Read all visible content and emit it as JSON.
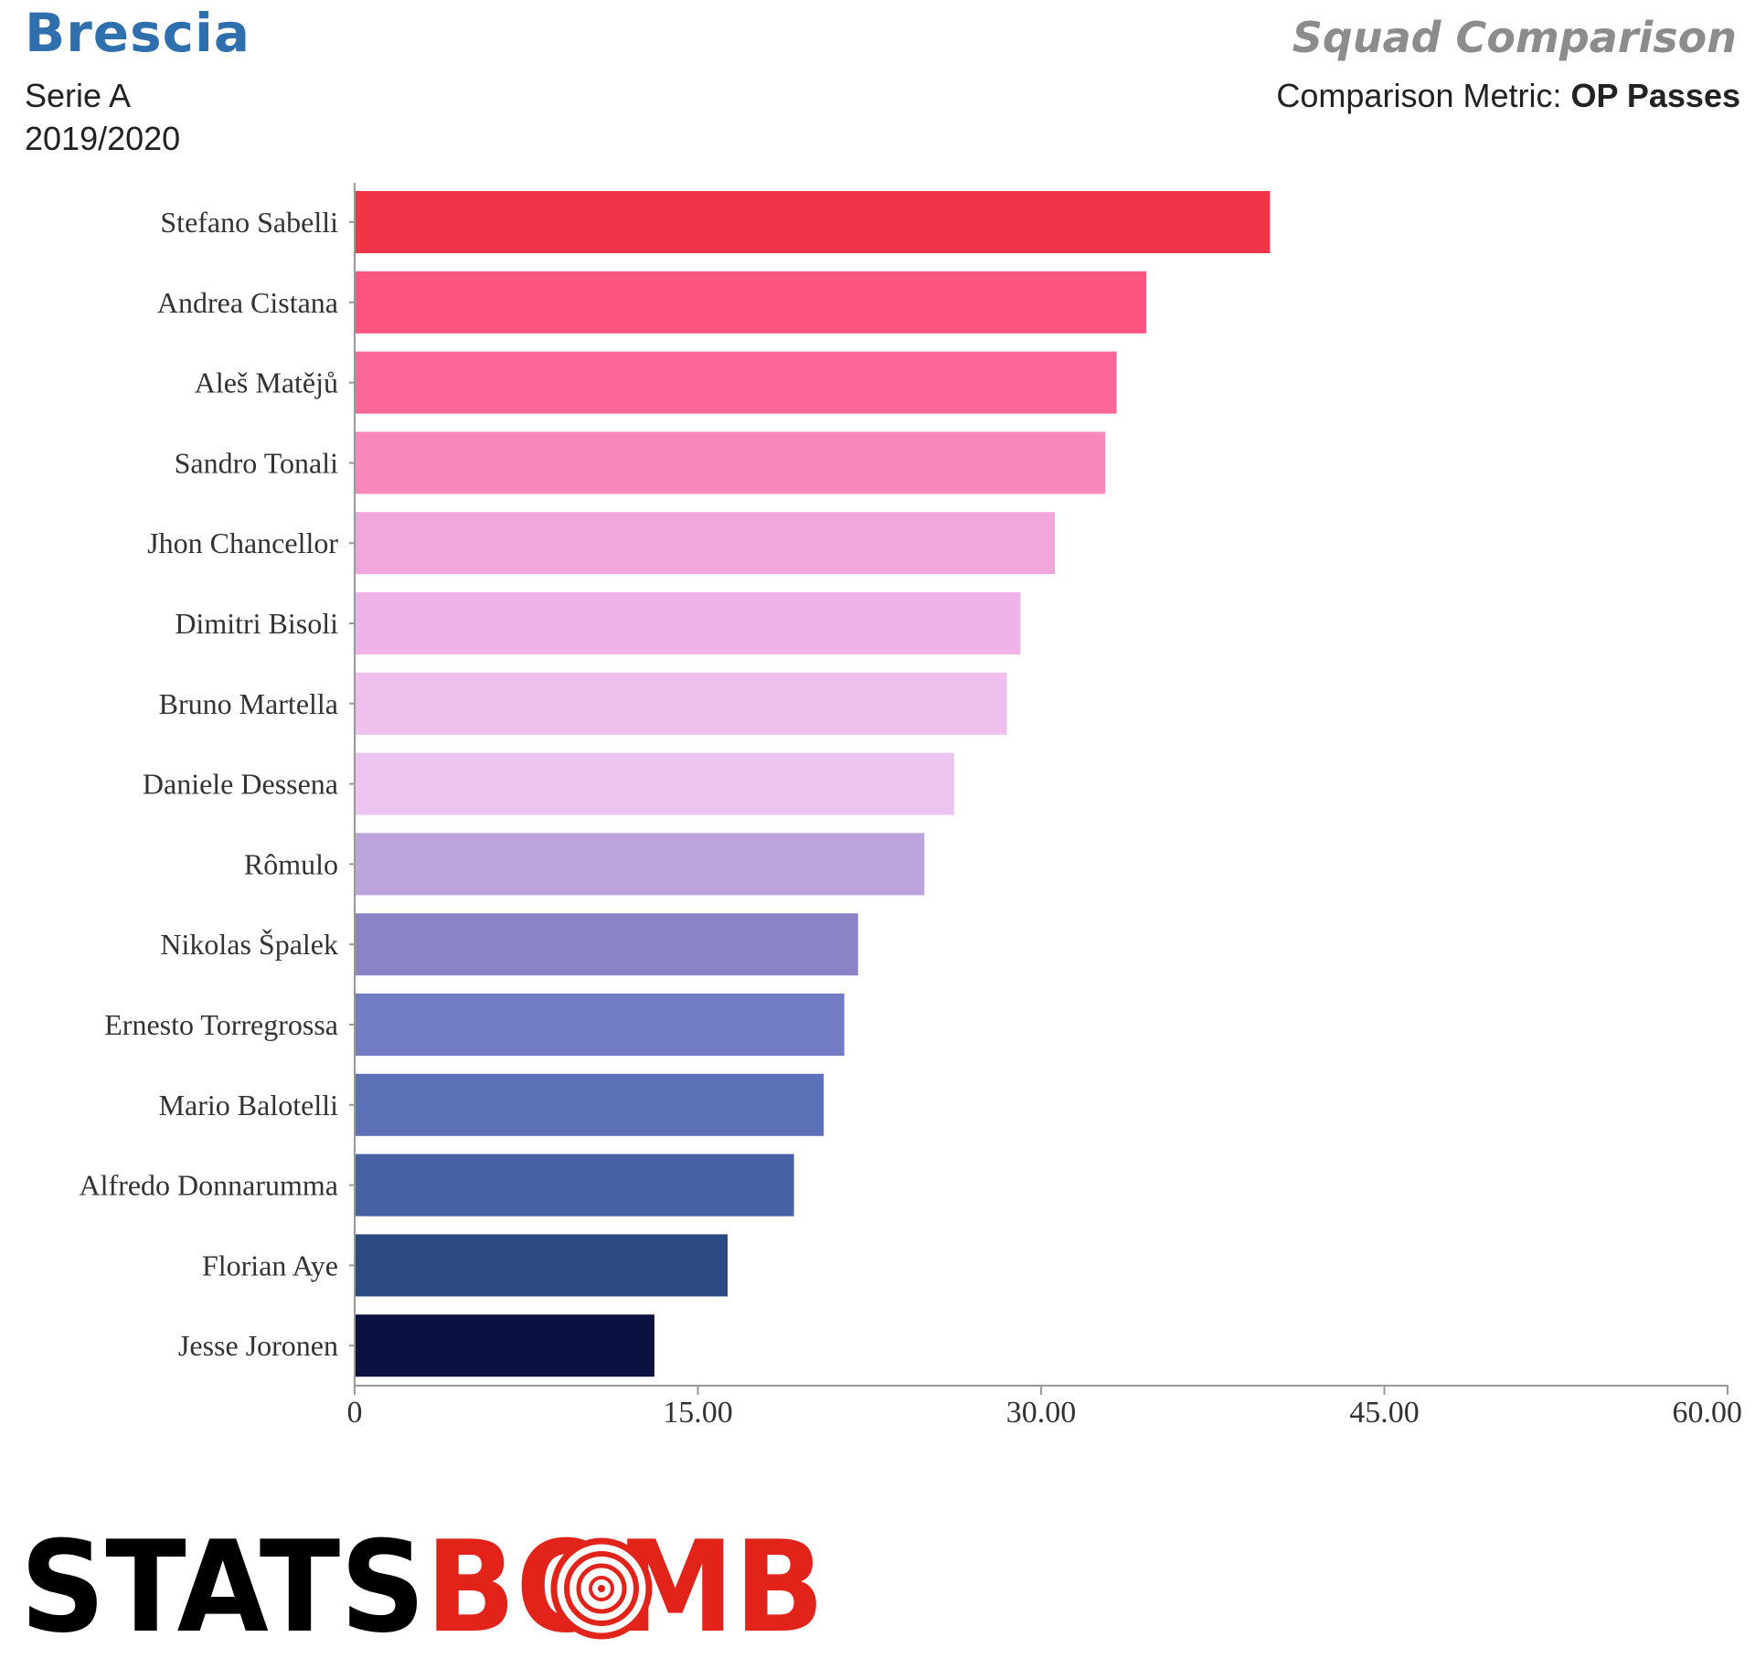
{
  "header": {
    "team": "Brescia",
    "league": "Serie A",
    "season": "2019/2020",
    "title": "Squad Comparison",
    "metric_label": "Comparison Metric:",
    "metric_value": "OP Passes"
  },
  "chart_data": {
    "type": "bar",
    "orientation": "horizontal",
    "categories": [
      "Stefano Sabelli",
      "Andrea Cistana",
      "Aleš Matějů",
      "Sandro Tonali",
      "Jhon Chancellor",
      "Dimitri Bisoli",
      "Bruno Martella",
      "Daniele Dessena",
      "Rômulo",
      "Nikolas Špalek",
      "Ernesto Torregrossa",
      "Mario Balotelli",
      "Alfredo Donnarumma",
      "Florian Aye",
      "Jesse Joronen"
    ],
    "values": [
      40.0,
      34.6,
      33.3,
      32.8,
      30.6,
      29.1,
      28.5,
      26.2,
      24.9,
      22.0,
      21.4,
      20.5,
      19.2,
      16.3,
      13.1
    ],
    "colors": [
      "#f23448",
      "#fb5580",
      "#fb6898",
      "#f889bc",
      "#f1a6dc",
      "#f0b3e7",
      "#efbfee",
      "#ebc4ef",
      "#bca4dd",
      "#8a83c6",
      "#727dc5",
      "#5d71b9",
      "#4761a2",
      "#2c4a82",
      "#0b1242"
    ],
    "xlim": [
      0,
      60
    ],
    "xticks": [
      "0",
      "15.00",
      "30.00",
      "45.00",
      "60.00"
    ],
    "xlabel": "",
    "ylabel": ""
  },
  "logo": {
    "text": "STATSBOMB",
    "part1": "STATS",
    "part2": "BOMB",
    "color_dark": "#000000",
    "color_red": "#e2231a"
  }
}
